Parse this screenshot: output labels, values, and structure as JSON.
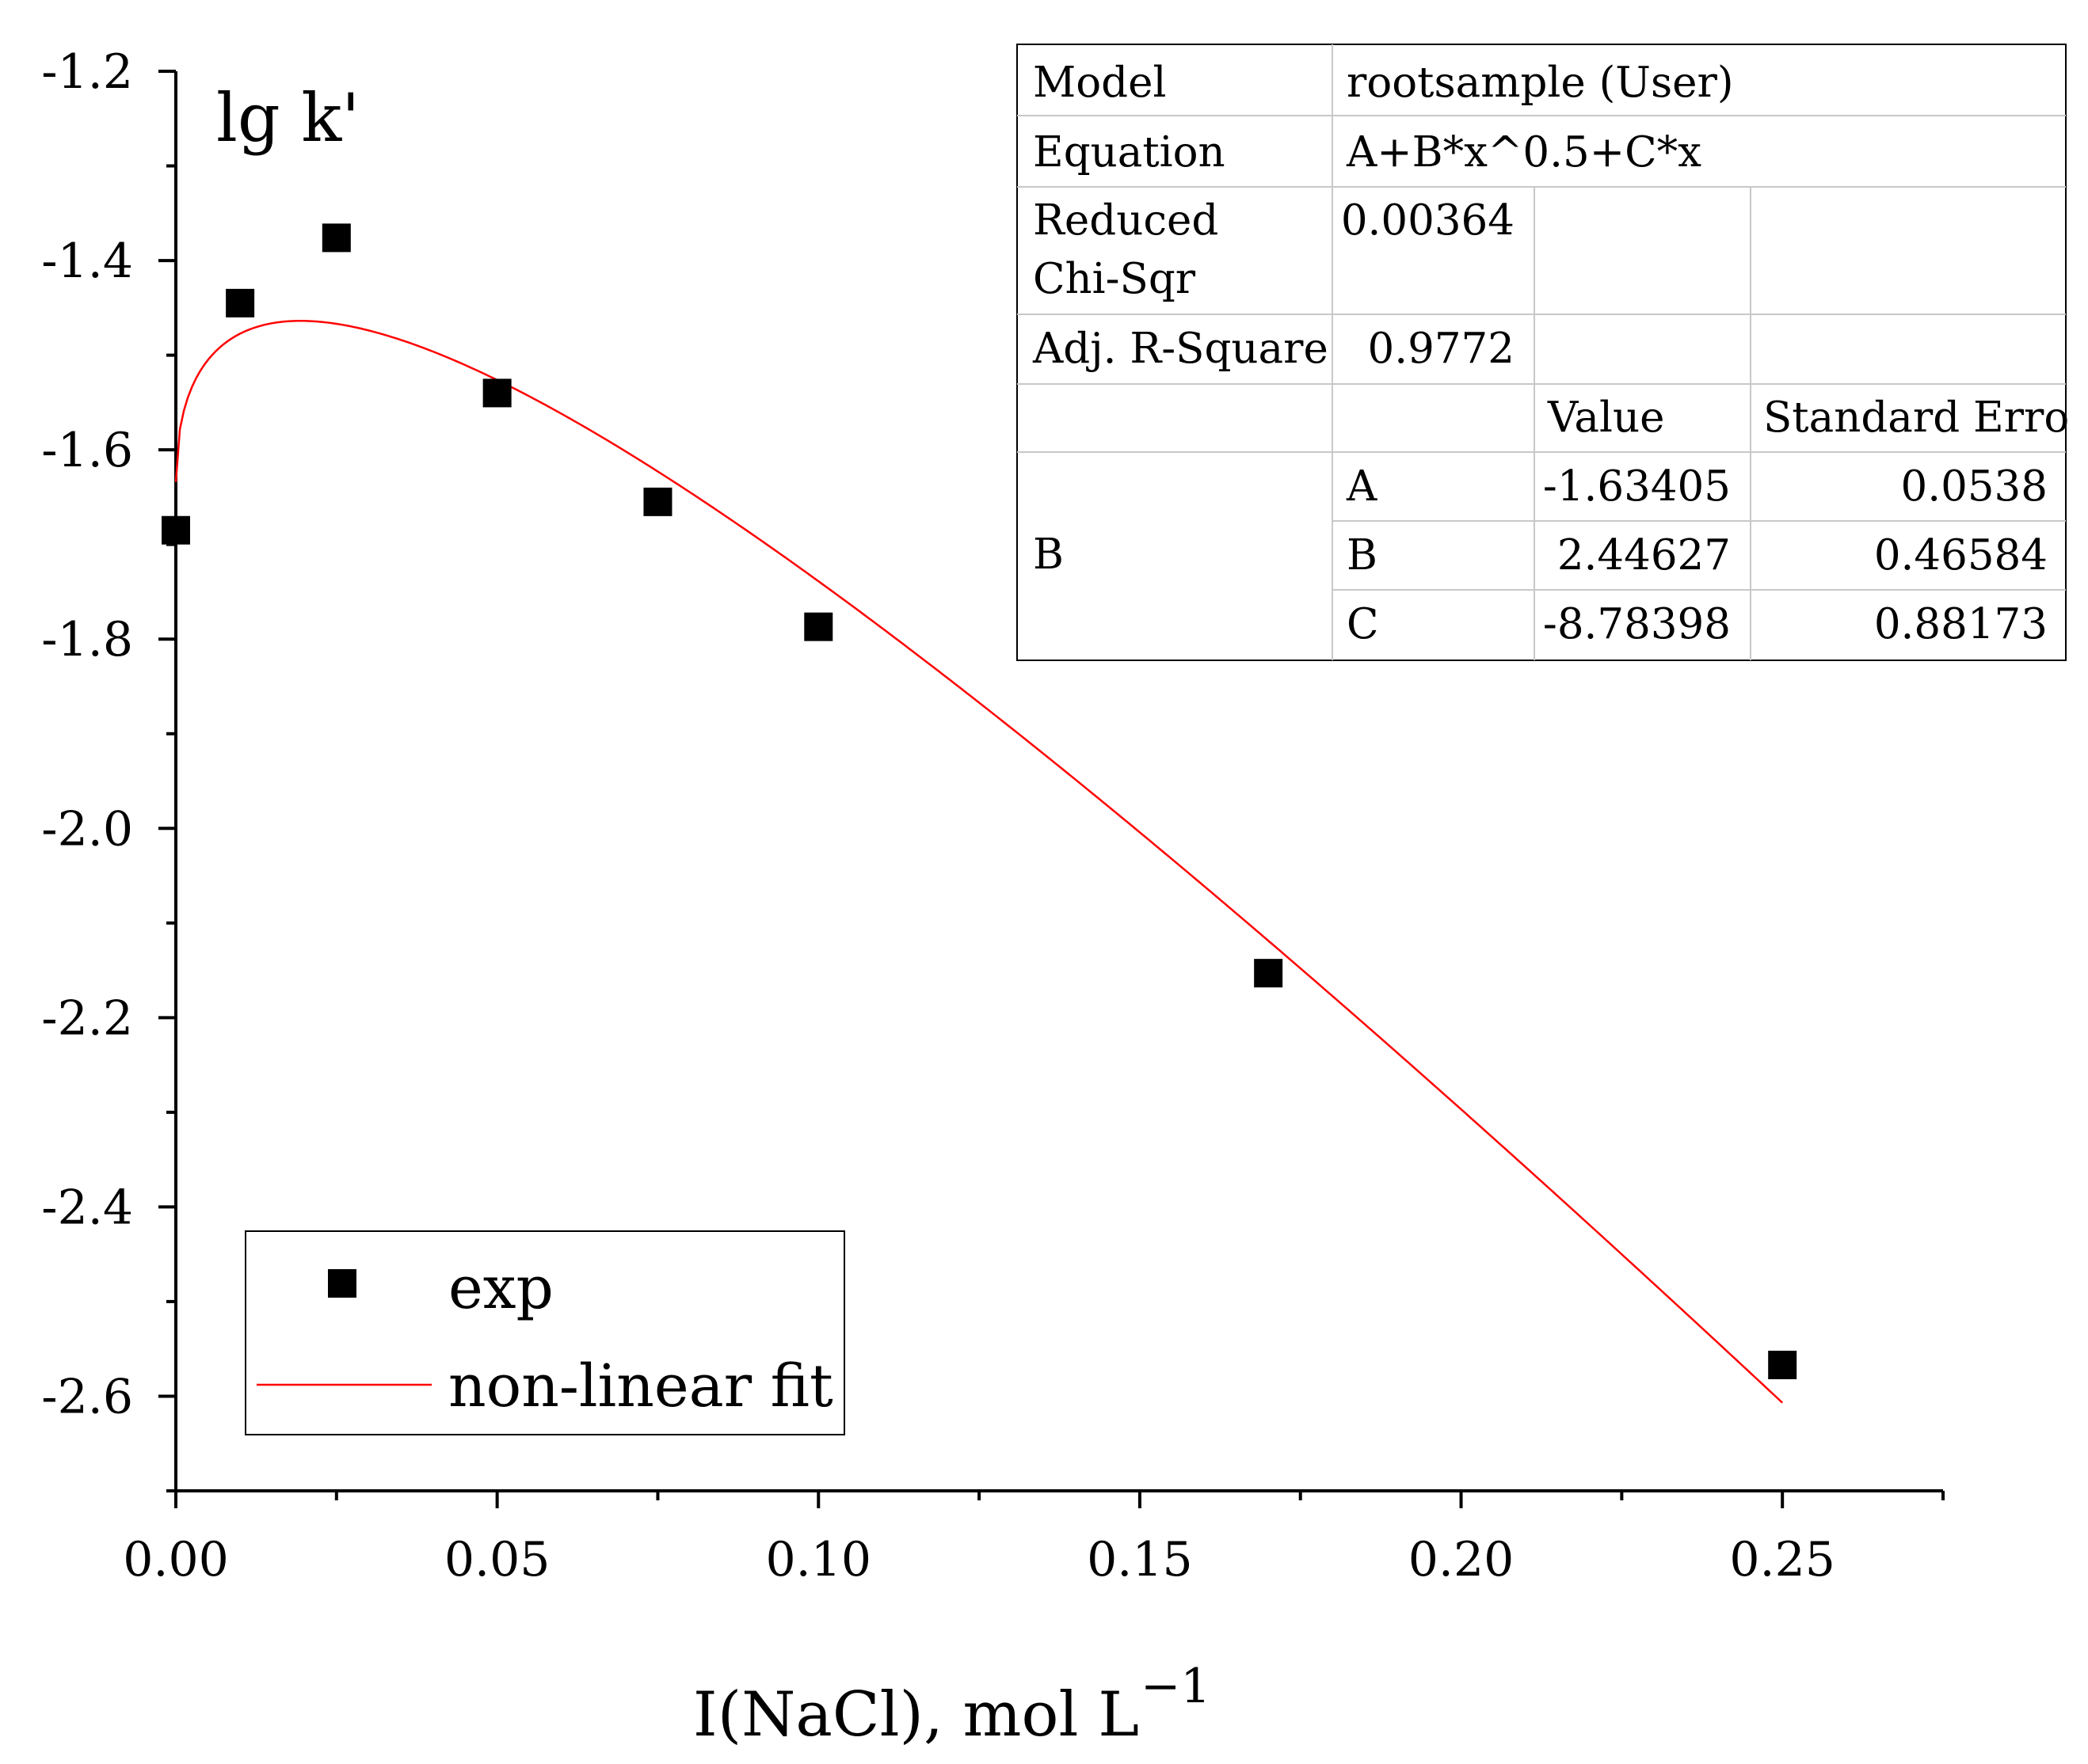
{
  "chart_data": {
    "type": "scatter",
    "title": "",
    "xlabel": "I(NaCl), mol L",
    "xlabel_sup": "−1",
    "ylabel": "lg k'",
    "xlim": [
      0,
      0.275
    ],
    "ylim": [
      -2.7,
      -1.2
    ],
    "xticks": [
      0.0,
      0.05,
      0.1,
      0.15,
      0.2,
      0.25
    ],
    "xtick_labels": [
      "0.00",
      "0.05",
      "0.10",
      "0.15",
      "0.20",
      "0.25"
    ],
    "xminor": [
      0.025,
      0.075,
      0.125,
      0.175,
      0.225,
      0.275
    ],
    "yticks": [
      -2.6,
      -2.4,
      -2.2,
      -2.0,
      -1.8,
      -1.6,
      -1.4,
      -1.2
    ],
    "ytick_labels": [
      "-2.6",
      "-2.4",
      "-2.2",
      "-2.0",
      "-1.8",
      "-1.6",
      "-1.4",
      "-1.2"
    ],
    "yminor": [
      -2.7,
      -2.5,
      -2.3,
      -2.1,
      -1.9,
      -1.7,
      -1.5,
      -1.3
    ],
    "series": [
      {
        "name": "exp",
        "kind": "scatter",
        "marker": "square",
        "color": "#000000",
        "x": [
          0.0,
          0.01,
          0.025,
          0.05,
          0.075,
          0.1,
          0.17,
          0.25
        ],
        "y": [
          -1.685,
          -1.445,
          -1.376,
          -1.54,
          -1.655,
          -1.787,
          -2.153,
          -2.567
        ]
      },
      {
        "name": "non-linear fit",
        "kind": "line",
        "color": "#ff0000",
        "equation": "A+B*x^0.5+C*x",
        "params": {
          "A": -1.63405,
          "B": 2.44627,
          "C": -8.78398
        },
        "x_range": [
          0,
          0.25
        ]
      }
    ],
    "legend": {
      "position": "bottom-left",
      "entries": [
        {
          "label": "exp",
          "symbol": "square",
          "color": "#000000"
        },
        {
          "label": "non-linear fit",
          "symbol": "line",
          "color": "#ff0000"
        }
      ]
    },
    "fit_table": {
      "rows": [
        {
          "key": "Model",
          "value": "rootsample (User)"
        },
        {
          "key": "Equation",
          "value": "A+B*x^0.5+C*x"
        },
        {
          "key": "Reduced Chi-Sqr",
          "key_lines": [
            "Reduced",
            "Chi-Sqr"
          ],
          "value": "0.00364"
        },
        {
          "key": "Adj. R-Square",
          "value": "0.9772"
        }
      ],
      "param_header": {
        "value": "Value",
        "error": "Standard Erro"
      },
      "param_group": "B",
      "params": [
        {
          "name": "A",
          "value": "-1.63405",
          "error": "0.0538"
        },
        {
          "name": "B",
          "value": "2.44627",
          "error": "0.46584"
        },
        {
          "name": "C",
          "value": "-8.78398",
          "error": "0.88173"
        }
      ]
    }
  }
}
